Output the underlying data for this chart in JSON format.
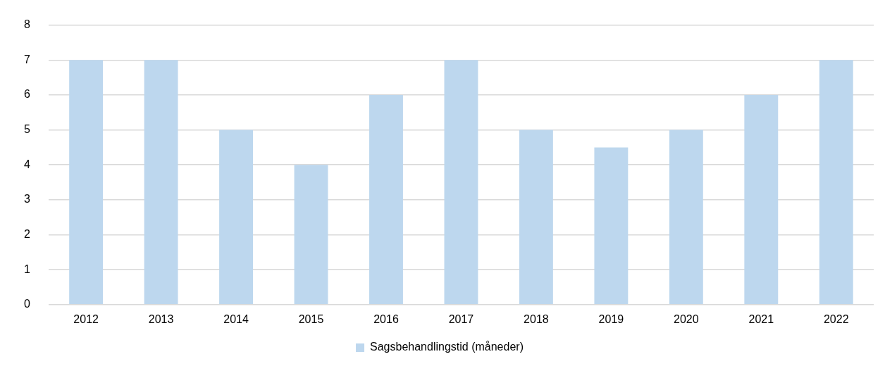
{
  "chart_data": {
    "type": "bar",
    "categories": [
      "2012",
      "2013",
      "2014",
      "2015",
      "2016",
      "2017",
      "2018",
      "2019",
      "2020",
      "2021",
      "2022"
    ],
    "series": [
      {
        "name": "Sagsbehandlingstid (måneder)",
        "color": "#bdd7ee",
        "values": [
          7,
          7,
          5,
          4,
          6,
          7,
          5,
          4.5,
          5,
          6,
          7
        ]
      }
    ],
    "ylim": [
      0,
      8
    ],
    "yticks": [
      0,
      1,
      2,
      3,
      4,
      5,
      6,
      7,
      8
    ],
    "grid": "y",
    "legend": "bottom"
  }
}
